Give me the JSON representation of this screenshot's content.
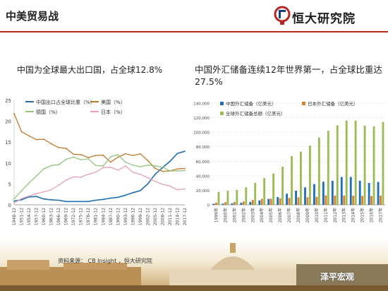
{
  "header": {
    "title": "中美贸易战",
    "brand": "恒大研究院"
  },
  "left": {
    "title": "中国为全球最大出口国，占全球12.8%",
    "chart_data": {
      "type": "line",
      "x": [
        1948,
        1951,
        1954,
        1957,
        1960,
        1963,
        1966,
        1969,
        1972,
        1975,
        1978,
        1981,
        1984,
        1987,
        1990,
        1993,
        1996,
        1999,
        2002,
        2005,
        2008,
        2011,
        2014,
        2017
      ],
      "tick_labels": [
        "1948-12",
        "1951-12",
        "1954-12",
        "1957-12",
        "1960-12",
        "1963-12",
        "1966-12",
        "1969-12",
        "1972-12",
        "1975-12",
        "1978-12",
        "1981-12",
        "1984-12",
        "1987-12",
        "1990-12",
        "1993-12",
        "1996-12",
        "1999-12",
        "2002-12",
        "2005-12",
        "2008-12",
        "2011-12",
        "2014-12",
        "2017-12"
      ],
      "ylim": [
        0,
        25
      ],
      "yticks": [
        0,
        5,
        10,
        15,
        20,
        25
      ],
      "series": [
        {
          "name": "中国出口占全球比重（%）",
          "color": "#1f6fb5",
          "values": [
            0.9,
            1.2,
            1.9,
            2.0,
            1.4,
            1.2,
            1.1,
            0.8,
            0.8,
            0.8,
            0.8,
            1.1,
            1.3,
            1.6,
            1.8,
            2.3,
            2.9,
            3.4,
            5.0,
            7.3,
            8.9,
            10.4,
            12.3,
            12.8
          ]
        },
        {
          "name": "美国（%）",
          "color": "#c0792b",
          "values": [
            21.8,
            17.5,
            16.5,
            15.6,
            15.7,
            14.6,
            13.7,
            13.5,
            12.1,
            12.0,
            11.3,
            11.8,
            11.9,
            10.2,
            11.4,
            12.2,
            11.8,
            12.2,
            10.6,
            8.7,
            8.0,
            8.1,
            8.6,
            8.7
          ]
        },
        {
          "name": "德国（%）",
          "color": "#93c47d",
          "values": [
            1.4,
            3.4,
            5.2,
            6.9,
            8.6,
            9.4,
            9.6,
            10.9,
            11.4,
            10.8,
            11.0,
            9.4,
            9.3,
            11.5,
            12.0,
            10.2,
            9.5,
            9.1,
            9.5,
            9.3,
            9.0,
            8.1,
            8.1,
            8.2
          ]
        },
        {
          "name": "日本（%）",
          "color": "#e9a2b2",
          "values": [
            0.4,
            1.5,
            2.1,
            2.7,
            3.1,
            3.6,
            4.7,
            5.9,
            6.7,
            6.6,
            7.3,
            7.8,
            8.9,
            9.0,
            8.3,
            9.3,
            7.8,
            7.3,
            6.5,
            5.6,
            4.9,
            4.5,
            3.6,
            3.8
          ]
        }
      ]
    }
  },
  "right": {
    "title": "中国外汇储备连续12年世界第一，占全球比重达27.5%",
    "chart_data": {
      "type": "bar",
      "categories": [
        "1999年",
        "2000年",
        "2001年",
        "2002年",
        "2003年",
        "2004年",
        "2005年",
        "2006年",
        "2007年",
        "2008年",
        "2009年",
        "2010年",
        "2011年",
        "2012年",
        "2013年",
        "2014年",
        "2015年",
        "2016年",
        "2017年"
      ],
      "ylim": [
        0,
        140000
      ],
      "yticks": [
        "0",
        "20,000",
        "40,000",
        "60,000",
        "80,000",
        "100,000",
        "120,000",
        "140,000"
      ],
      "series": [
        {
          "name": "中国外汇储备（亿美元）",
          "color": "#1f6fb5",
          "values": [
            1547,
            1656,
            2122,
            2864,
            4033,
            6099,
            8189,
            10663,
            15282,
            19460,
            23992,
            28473,
            31811,
            33116,
            38213,
            38430,
            33304,
            30105,
            31399
          ]
        },
        {
          "name": "日本外汇储备（亿美元）",
          "color": "#d9822b",
          "values": [
            2880,
            3550,
            3950,
            4620,
            6650,
            8340,
            8440,
            8950,
            9540,
            10310,
            10490,
            10960,
            12960,
            12680,
            12670,
            12610,
            12330,
            12170,
            12640
          ]
        },
        {
          "name": "全球外汇储备总额（亿美元）",
          "color": "#9bbb59",
          "values": [
            17800,
            19400,
            20500,
            24100,
            30200,
            36800,
            43200,
            52500,
            67000,
            73200,
            81600,
            92600,
            102000,
            109500,
            116000,
            116000,
            109000,
            108000,
            114000
          ]
        }
      ]
    }
  },
  "footer": {
    "source": "资料来源： CB Insight ，恒大研究院",
    "watermark": "泽平宏观"
  }
}
